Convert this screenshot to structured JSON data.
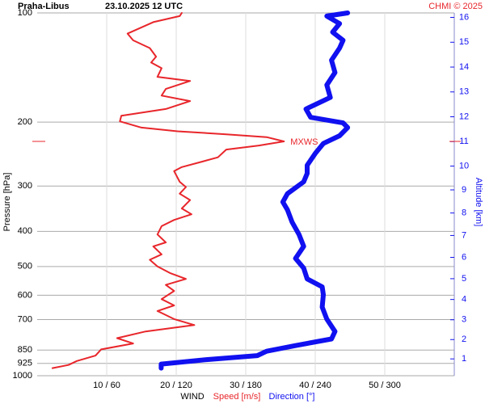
{
  "chart_data": {
    "type": "profile",
    "title": "Praha-Libus",
    "subtitle": "23.10.2025 12 UTC",
    "credit": "CHMI © 2025",
    "x_label": "WIND",
    "y_label": "Pressure [hPa]",
    "y2_label": "Altitude [km]",
    "ylim": [
      1000,
      100
    ],
    "log_scale": true,
    "yticks": [
      100,
      200,
      300,
      400,
      500,
      600,
      700,
      850,
      925,
      1000
    ],
    "xlim": [
      0,
      60
    ],
    "x2lim": [
      0,
      360
    ],
    "xticks": [
      {
        "value": 10,
        "label": "10 / 60"
      },
      {
        "value": 20,
        "label": "20 / 120"
      },
      {
        "value": 30,
        "label": "30 / 180"
      },
      {
        "value": 40,
        "label": "40 / 240"
      },
      {
        "value": 50,
        "label": "50 / 300"
      }
    ],
    "y2ticks": [
      1,
      2,
      3,
      4,
      5,
      6,
      7,
      8,
      9,
      10,
      11,
      12,
      13,
      14,
      15,
      16
    ],
    "grid": true,
    "annotation": {
      "text": "MXWS",
      "y": 226,
      "x": 35.5,
      "color": "#e8262b"
    },
    "series": [
      {
        "name": "Speed [m/s]",
        "color": "#e8262b",
        "axis": "x",
        "y": [
          100,
          102,
          106,
          114,
          119,
          125,
          132,
          137,
          142,
          150,
          154,
          162,
          169,
          175,
          184,
          192,
          199,
          207,
          212,
          216,
          220,
          226,
          232,
          238,
          250,
          257,
          266,
          273,
          292,
          302,
          315,
          328,
          346,
          359,
          372,
          387,
          408,
          429,
          440,
          463,
          479,
          500,
          521,
          541,
          562,
          584,
          615,
          640,
          663,
          698,
          725,
          755,
          788,
          815,
          846,
          880,
          911,
          934,
          953
        ],
        "values": [
          20.8,
          20.5,
          16.7,
          13,
          13.8,
          16.2,
          17.1,
          16.4,
          17.9,
          17.3,
          22,
          18.5,
          17.9,
          22,
          18.5,
          12.1,
          11.9,
          15,
          20.2,
          27.2,
          33,
          35.5,
          31.9,
          27.2,
          26,
          23.7,
          20.8,
          19.7,
          20.5,
          21.4,
          20.5,
          22,
          20.8,
          22.2,
          19.7,
          17.9,
          17.3,
          18.5,
          16.7,
          17.9,
          16.2,
          17.3,
          19.1,
          21.4,
          18.5,
          19.7,
          17.9,
          19.7,
          17.3,
          19.7,
          22.6,
          15.6,
          11.5,
          13.8,
          9.2,
          8.4,
          5.7,
          4.5,
          2.2
        ]
      },
      {
        "name": "Direction [°]",
        "color": "#1010f0",
        "axis": "x2",
        "y": [
          100,
          102,
          107,
          113,
          119,
          125,
          135,
          146,
          158,
          171,
          184,
          194,
          201,
          207,
          218,
          229,
          244,
          263,
          277,
          292,
          315,
          332,
          349,
          377,
          408,
          440,
          475,
          505,
          541,
          569,
          598,
          647,
          698,
          755,
          792,
          826,
          856,
          880,
          903,
          929,
          953
        ],
        "values": [
          268,
          250,
          261,
          255,
          264,
          261,
          254,
          257,
          250,
          253,
          232,
          236,
          264,
          268,
          261,
          247,
          240,
          233,
          233,
          230,
          216,
          212,
          216,
          220,
          226,
          230,
          223,
          230,
          233,
          246,
          247,
          246,
          250,
          257,
          254,
          223,
          198,
          190,
          146,
          107,
          107
        ]
      }
    ]
  }
}
